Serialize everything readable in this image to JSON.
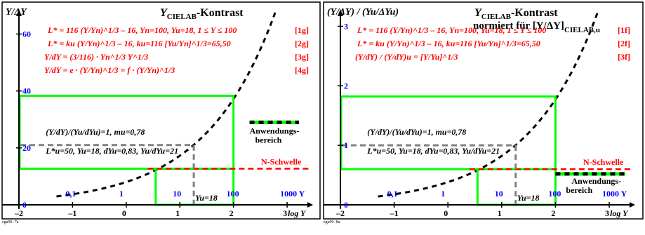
{
  "panels": [
    {
      "id": "left",
      "corner_label": "Y/ΔY",
      "title": {
        "main": "Y",
        "sub": "CIELAB",
        "rest": "-Kontrast"
      },
      "formulas": [
        {
          "text": "L* = 116 (Y/Yn)^1/3 – 16,   Yn=100, Yu=18, 1 ≤ Y ≤ 100",
          "tag": "[1g]"
        },
        {
          "text": "L* = ku (Y/Yn)^1/3 – 16,    ku=116 [Yu/Yn]^1/3=65,50",
          "tag": "[2g]"
        },
        {
          "text": "Y/dY = (3/116) · Yn^1/3 Y^1/3",
          "tag": "[3g]"
        },
        {
          "text": "Y/dY = e · (Y/Yn)^1/3 = f · (Y/Yn)^1/3",
          "tag": "[4g]"
        }
      ],
      "info_line1": "(Y/dY)/(Yu/dYu)=1, mu=0,78",
      "info_line2": "L*u=50, Yu=18, dYu=0,83, Yu/dYu=21",
      "legend_label": "Anwendungs-\nbereich",
      "threshold_label": "N-Schwelle",
      "yu_marker": "Yu=18",
      "y_ticks": [
        "0",
        "20",
        "40",
        "60"
      ],
      "y_values": [
        0,
        20,
        40,
        60
      ],
      "ymax": 69,
      "tick_values_blue": [
        "0,1",
        "1",
        "10",
        "100",
        "1000 Y"
      ],
      "footer": "ega90−7a"
    },
    {
      "id": "right",
      "corner_label": "(Y/ΔY) / (Yu/ΔYu)",
      "title": {
        "main": "Y",
        "sub": "CIELAB",
        "rest": "-Kontrast",
        "line2": "normiert für [Y/ΔY]",
        "line2_sub": "CIELAB,u"
      },
      "formulas": [
        {
          "text": "L* = 116 (Y/Yn)^1/3 – 16,   Yn=100, Yu=18, 1 ≤ Y ≤ 100",
          "tag": "[1f]"
        },
        {
          "text": "L* = ku (Y/Yn)^1/3 – 16,    ku=116 [Yu/Yn]^1/3=65,50",
          "tag": "[2f]"
        },
        {
          "text": "(Y/dY) / (Y/dY)u = [Y/Yu]^1/3",
          "tag": "[3f]"
        }
      ],
      "info_line1": "(Y/dY)/(Yu/dYu)=1, mu=0,78",
      "info_line2": "L*u=50, Yu=18, dYu=0,83, Yu/dYu=21",
      "legend_label": "Anwendungs-\nbereich",
      "threshold_label": "N-Schwelle",
      "yu_marker": "Yu=18",
      "y_ticks": [
        "0",
        "1",
        "2",
        "3"
      ],
      "y_values": [
        0,
        1,
        2,
        3
      ],
      "ymax": 3.3,
      "tick_values_blue": [
        "0,1",
        "1",
        "10",
        "100",
        "1000 Y"
      ],
      "footer": "ega90−8a"
    }
  ],
  "x_axis": {
    "label": "log Y",
    "tick_labels": [
      "–2",
      "–1",
      "0",
      "1",
      "2",
      "3"
    ],
    "range": [
      -2,
      3.3
    ]
  },
  "colors": {
    "frame": "#000000",
    "title": "#000000",
    "formula": "#ff0000",
    "blue": "#0000ff",
    "green": "#00ff00",
    "red": "#ff0000",
    "gray": "#808080",
    "curve": "#000000"
  },
  "chart_data": [
    {
      "type": "line",
      "panel": "left",
      "xlabel": "log Y",
      "ylabel": "Y/ΔY",
      "xlim": [
        -2,
        3.3
      ],
      "ylim": [
        0,
        69
      ],
      "series": [
        {
          "values_formula": "Y/dY = 21·(Y/18)^(1/3)",
          "x": [
            -1.2,
            -0.5,
            0,
            0.5,
            1,
            1.5,
            2,
            2.5
          ],
          "values": [
            3.0,
            5.1,
            8.0,
            11.7,
            17.2,
            25.2,
            37.1,
            54.5
          ]
        }
      ],
      "green_box": {
        "x0": -2,
        "x1": 2,
        "y0": 12.7,
        "y1": 38.3
      },
      "green_box_inner": {
        "x0": 0.55,
        "x1": 2,
        "y0": 0,
        "y1": 12.7
      },
      "threshold_y": 12.7,
      "gray_ref": {
        "x": 1.26,
        "y": 21
      }
    },
    {
      "type": "line",
      "panel": "right",
      "xlabel": "log Y",
      "ylabel": "(Y/ΔY) / (Yu/ΔYu)",
      "xlim": [
        -2,
        3.3
      ],
      "ylim": [
        0,
        3.3
      ],
      "series": [
        {
          "values_formula": "(Y/Yu)^(1/3)",
          "x": [
            -1.2,
            -0.5,
            0,
            0.5,
            1,
            1.5,
            2,
            2.5
          ],
          "values": [
            0.14,
            0.24,
            0.38,
            0.56,
            0.82,
            1.2,
            1.77,
            2.6
          ]
        }
      ],
      "green_box": {
        "x0": -2,
        "x1": 2,
        "y0": 0.6,
        "y1": 1.82
      },
      "green_box_inner": {
        "x0": 0.55,
        "x1": 2,
        "y0": 0,
        "y1": 0.6
      },
      "threshold_y": 0.6,
      "gray_ref": {
        "x": 1.26,
        "y": 1
      }
    }
  ]
}
